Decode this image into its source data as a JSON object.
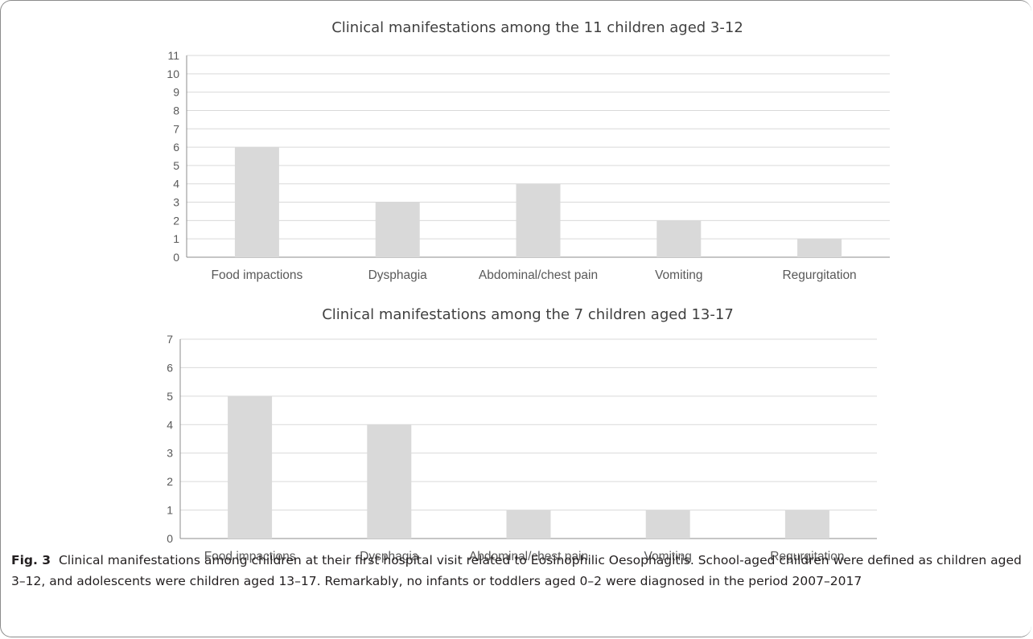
{
  "chart_data": [
    {
      "type": "bar",
      "title": "Clinical manifestations among the 11 children aged 3-12",
      "xlabel": "",
      "ylabel": "",
      "categories": [
        "Food impactions",
        "Dysphagia",
        "Abdominal/chest pain",
        "Vomiting",
        "Regurgitation"
      ],
      "values": [
        6,
        3,
        4,
        2,
        1
      ],
      "ylim": [
        0,
        11
      ],
      "yticks": [
        0,
        1,
        2,
        3,
        4,
        5,
        6,
        7,
        8,
        9,
        10,
        11
      ],
      "grid": true,
      "bar_color": "#d9d9d9"
    },
    {
      "type": "bar",
      "title": "Clinical manifestations among the 7 children aged 13-17",
      "xlabel": "",
      "ylabel": "",
      "categories": [
        "Food impactions",
        "Dysphagia",
        "Abdominal/chest pain",
        "Vomiting",
        "Regurgitation"
      ],
      "values": [
        5,
        4,
        1,
        1,
        1
      ],
      "ylim": [
        0,
        7
      ],
      "yticks": [
        0,
        1,
        2,
        3,
        4,
        5,
        6,
        7
      ],
      "grid": true,
      "bar_color": "#d9d9d9"
    }
  ],
  "caption": {
    "label": "Fig. 3",
    "text": "Clinical manifestations among children at their first hospital visit related to Eosinophilic Oesophagitis. School-aged children were defined as children aged 3–12, and adolescents were children aged 13–17. Remarkably, no infants or toddlers aged 0–2 were diagnosed in the period 2007–2017"
  }
}
